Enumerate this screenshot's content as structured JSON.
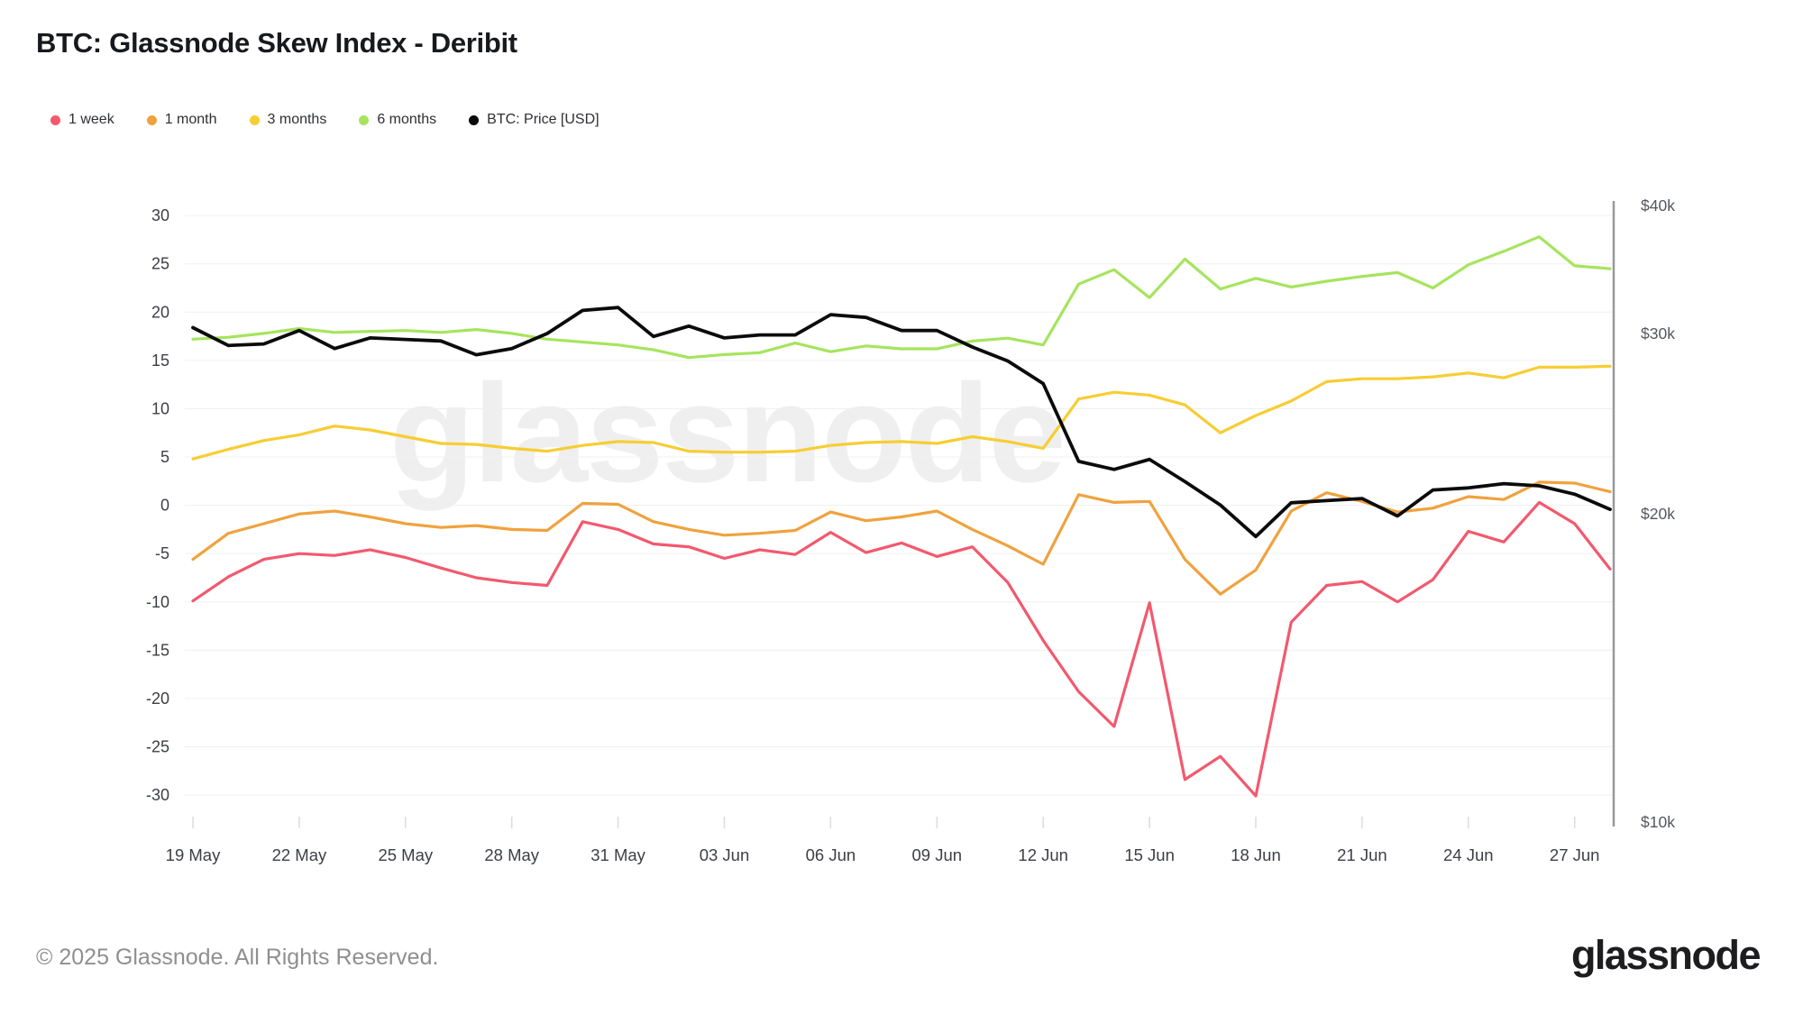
{
  "header": {
    "title": "BTC: Glassnode Skew Index - Deribit"
  },
  "legend": [
    {
      "label": "1 week",
      "color": "#f2596e"
    },
    {
      "label": "1 month",
      "color": "#f0a23e"
    },
    {
      "label": "3 months",
      "color": "#f7cd33"
    },
    {
      "label": "6 months",
      "color": "#a6e45e"
    },
    {
      "label": "BTC: Price [USD]",
      "color": "#0b0b0b"
    }
  ],
  "watermark": "glassnode",
  "footer": {
    "copyright": "© 2025 Glassnode. All Rights Reserved.",
    "logo": "glassnode"
  },
  "chart_data": {
    "type": "line",
    "title": "BTC: Glassnode Skew Index - Deribit",
    "x": [
      "19 May",
      "20 May",
      "21 May",
      "22 May",
      "23 May",
      "24 May",
      "25 May",
      "26 May",
      "27 May",
      "28 May",
      "29 May",
      "30 May",
      "31 May",
      "01 Jun",
      "02 Jun",
      "03 Jun",
      "04 Jun",
      "05 Jun",
      "06 Jun",
      "07 Jun",
      "08 Jun",
      "09 Jun",
      "10 Jun",
      "11 Jun",
      "12 Jun",
      "13 Jun",
      "14 Jun",
      "15 Jun",
      "16 Jun",
      "17 Jun",
      "18 Jun",
      "19 Jun",
      "20 Jun",
      "21 Jun",
      "22 Jun",
      "23 Jun",
      "24 Jun",
      "25 Jun",
      "26 Jun",
      "27 Jun",
      "28 Jun"
    ],
    "x_tick_labels": [
      "19 May",
      "22 May",
      "25 May",
      "28 May",
      "31 May",
      "03 Jun",
      "06 Jun",
      "09 Jun",
      "12 Jun",
      "15 Jun",
      "18 Jun",
      "21 Jun",
      "24 Jun",
      "27 Jun"
    ],
    "x_tick_indices": [
      0,
      3,
      6,
      9,
      12,
      15,
      18,
      21,
      24,
      27,
      30,
      33,
      36,
      39
    ],
    "left_axis": {
      "ticks": [
        30,
        25,
        20,
        15,
        10,
        5,
        0,
        -5,
        -10,
        -15,
        -20,
        -25,
        -30
      ],
      "ylim": [
        -30,
        30
      ],
      "grid": true
    },
    "right_axis": {
      "scale": "log",
      "tick_labels": [
        "$40k",
        "$30k",
        "$20k",
        "$10k"
      ],
      "tick_values": [
        40000,
        30000,
        20000,
        10000
      ],
      "ylim": [
        10000,
        40000
      ]
    },
    "legend_position": "top-left",
    "series": [
      {
        "name": "1 week",
        "axis": "left",
        "color": "#f2596e",
        "values": [
          -9.9,
          -7.4,
          -5.6,
          -5.0,
          -5.2,
          -4.6,
          -5.4,
          -6.5,
          -7.5,
          -8.0,
          -8.3,
          -1.7,
          -2.5,
          -4.0,
          -4.3,
          -5.5,
          -4.6,
          -5.1,
          -2.8,
          -4.9,
          -3.9,
          -5.3,
          -4.3,
          -8.0,
          -14.0,
          -19.3,
          -22.9,
          -10.1,
          -28.4,
          -26.0,
          -30.1,
          -12.1,
          -8.3,
          -7.9,
          -10.0,
          -7.7,
          -2.7,
          -3.8,
          0.3,
          -1.9,
          -6.6
        ]
      },
      {
        "name": "1 month",
        "axis": "left",
        "color": "#f0a23e",
        "values": [
          -5.6,
          -2.9,
          -1.9,
          -0.9,
          -0.6,
          -1.2,
          -1.9,
          -2.3,
          -2.1,
          -2.5,
          -2.6,
          0.2,
          0.1,
          -1.7,
          -2.5,
          -3.1,
          -2.9,
          -2.6,
          -0.7,
          -1.6,
          -1.2,
          -0.6,
          -2.5,
          -4.2,
          -6.1,
          1.1,
          0.3,
          0.4,
          -5.6,
          -9.2,
          -6.7,
          -0.6,
          1.3,
          0.4,
          -0.7,
          -0.3,
          0.9,
          0.6,
          2.4,
          2.3,
          1.4
        ]
      },
      {
        "name": "3 months",
        "axis": "left",
        "color": "#f7cd33",
        "values": [
          4.8,
          5.8,
          6.7,
          7.3,
          8.2,
          7.8,
          7.1,
          6.4,
          6.3,
          5.9,
          5.6,
          6.2,
          6.6,
          6.5,
          5.6,
          5.5,
          5.5,
          5.6,
          6.2,
          6.5,
          6.6,
          6.4,
          7.1,
          6.6,
          5.9,
          11.0,
          11.7,
          11.4,
          10.4,
          7.5,
          9.3,
          10.8,
          12.8,
          13.1,
          13.1,
          13.3,
          13.7,
          13.2,
          14.3,
          14.3,
          14.4
        ]
      },
      {
        "name": "6 months",
        "axis": "left",
        "color": "#a6e45e",
        "values": [
          17.2,
          17.4,
          17.8,
          18.3,
          17.9,
          18.0,
          18.1,
          17.9,
          18.2,
          17.8,
          17.2,
          16.9,
          16.6,
          16.1,
          15.3,
          15.6,
          15.8,
          16.8,
          15.9,
          16.5,
          16.2,
          16.2,
          17.0,
          17.3,
          16.6,
          22.9,
          24.4,
          21.5,
          25.5,
          22.4,
          23.5,
          22.6,
          23.2,
          23.7,
          24.1,
          22.5,
          24.9,
          26.3,
          27.8,
          24.8,
          24.5
        ]
      },
      {
        "name": "BTC: Price [USD]",
        "axis": "right",
        "color": "#0b0b0b",
        "values": [
          30400,
          29200,
          29300,
          30200,
          29000,
          29700,
          29600,
          29500,
          28600,
          29000,
          30000,
          31600,
          31800,
          29800,
          30500,
          29700,
          29900,
          29900,
          31300,
          31100,
          30200,
          30200,
          29100,
          28200,
          26800,
          22500,
          22100,
          22600,
          21500,
          20400,
          19000,
          20500,
          20600,
          20700,
          19900,
          21100,
          21200,
          21400,
          21300,
          20900,
          20200
        ]
      }
    ]
  }
}
